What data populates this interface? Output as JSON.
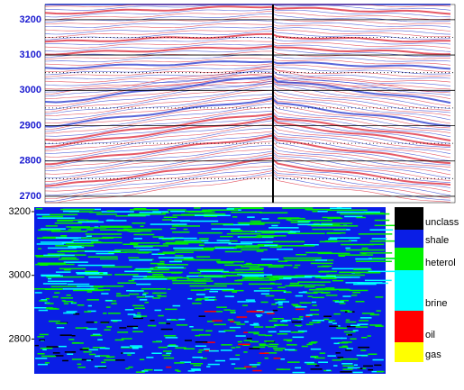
{
  "chart_data": [
    {
      "type": "seismic",
      "ylim": [
        2682,
        3243
      ],
      "yticks": [
        2700,
        2800,
        2900,
        3000,
        3100,
        3200
      ],
      "minor_yticks": [
        2750,
        2850,
        2950,
        3050,
        3150
      ],
      "grid": true,
      "tick_color": "#1a1ad0"
    },
    {
      "type": "classification",
      "ylim": [
        2691,
        3214
      ],
      "yticks": [
        2800,
        3000,
        3200
      ],
      "tick_color": "#000000",
      "legend": {
        "categories": [
          "unclass",
          "shale",
          "heterol",
          "brine",
          "oil",
          "gas"
        ],
        "colors": [
          "#000000",
          "#0a1ee6",
          "#00f000",
          "#00ffff",
          "#ff0000",
          "#ffff00"
        ]
      }
    }
  ]
}
